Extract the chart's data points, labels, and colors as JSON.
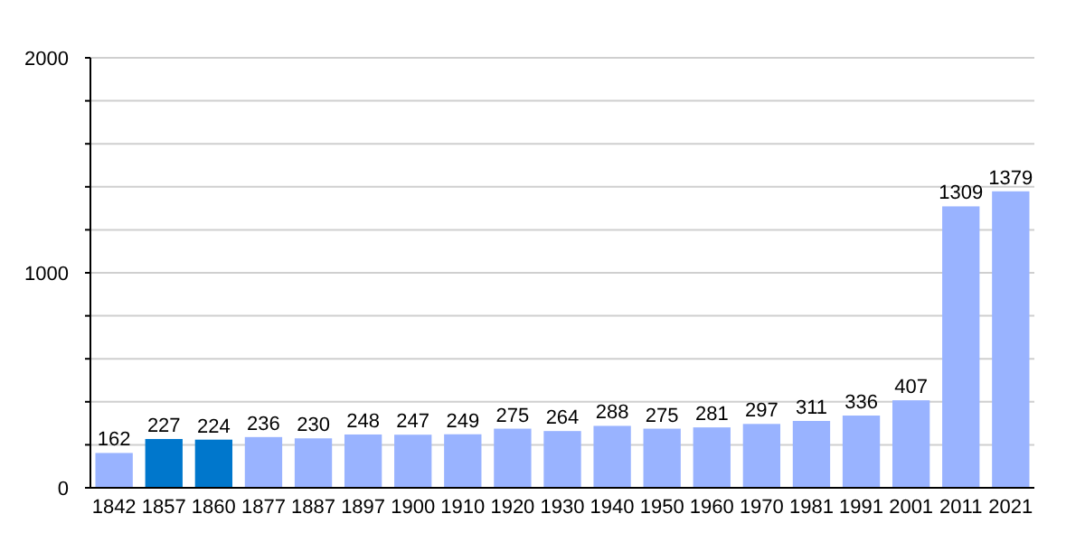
{
  "chart_data": {
    "type": "bar",
    "categories": [
      "1842",
      "1857",
      "1860",
      "1877",
      "1887",
      "1897",
      "1900",
      "1910",
      "1920",
      "1930",
      "1940",
      "1950",
      "1960",
      "1970",
      "1981",
      "1991",
      "2001",
      "2011",
      "2021"
    ],
    "values": [
      162,
      227,
      224,
      236,
      230,
      248,
      247,
      249,
      275,
      264,
      288,
      275,
      281,
      297,
      311,
      336,
      407,
      1309,
      1379
    ],
    "colors": [
      "#99b3ff",
      "#0077cc",
      "#0077cc",
      "#99b3ff",
      "#99b3ff",
      "#99b3ff",
      "#99b3ff",
      "#99b3ff",
      "#99b3ff",
      "#99b3ff",
      "#99b3ff",
      "#99b3ff",
      "#99b3ff",
      "#99b3ff",
      "#99b3ff",
      "#99b3ff",
      "#99b3ff",
      "#99b3ff",
      "#99b3ff"
    ],
    "ylim": [
      0,
      2000
    ],
    "yticks": [
      0,
      {
        "value": 200,
        "label": null
      },
      {
        "value": 400,
        "label": null
      },
      {
        "value": 600,
        "label": null
      },
      {
        "value": 800,
        "label": null
      },
      1000,
      {
        "value": 1200,
        "label": null
      },
      {
        "value": 1400,
        "label": null
      },
      {
        "value": 1600,
        "label": null
      },
      {
        "value": 1800,
        "label": null
      },
      2000
    ],
    "grid": "y",
    "data_labels": true
  }
}
